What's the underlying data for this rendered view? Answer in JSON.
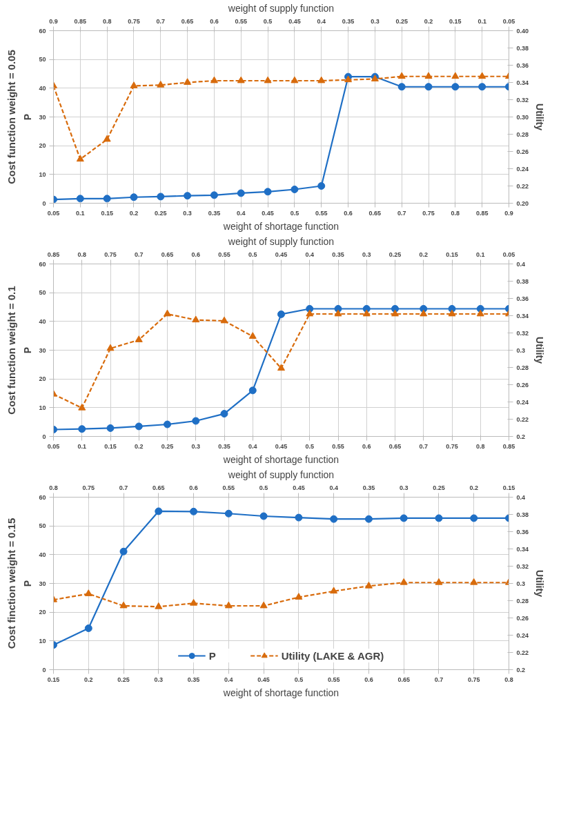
{
  "chart_data": [
    {
      "type": "line",
      "title": "Cost function weight = 0.05",
      "xlabel": "weight of shortage function",
      "x2label": "weight of supply function",
      "ylabel": "P",
      "y2label": "Utility",
      "x": [
        0.05,
        0.1,
        0.15,
        0.2,
        0.25,
        0.3,
        0.35,
        0.4,
        0.45,
        0.5,
        0.55,
        0.6,
        0.65,
        0.7,
        0.75,
        0.8,
        0.85,
        0.9
      ],
      "xlim": [
        0.05,
        0.9
      ],
      "xticks": [
        0.05,
        0.1,
        0.15,
        0.2,
        0.25,
        0.3,
        0.35,
        0.4,
        0.45,
        0.5,
        0.55,
        0.6,
        0.65,
        0.7,
        0.75,
        0.8,
        0.85,
        0.9
      ],
      "x2lim": [
        0.9,
        0.05
      ],
      "x2ticks": [
        0.9,
        0.85,
        0.8,
        0.75,
        0.7,
        0.65,
        0.6,
        0.55,
        0.5,
        0.45,
        0.4,
        0.35,
        0.3,
        0.25,
        0.2,
        0.15,
        0.1,
        0.05
      ],
      "ylim": [
        0,
        60
      ],
      "yticks": [
        0,
        10,
        20,
        30,
        40,
        50,
        60
      ],
      "y2lim": [
        0.2,
        0.4
      ],
      "y2ticks": [
        {
          "value": 0.2,
          "label": "0.20"
        },
        {
          "value": 0.22,
          "label": "0.22"
        },
        {
          "value": 0.24,
          "label": "0.24"
        },
        {
          "value": 0.26,
          "label": "0.26"
        },
        {
          "value": 0.28,
          "label": "0.28"
        },
        {
          "value": 0.3,
          "label": "0.30"
        },
        {
          "value": 0.32,
          "label": "0.32"
        },
        {
          "value": 0.34,
          "label": "0.34"
        },
        {
          "value": 0.36,
          "label": "0.36"
        },
        {
          "value": 0.38,
          "label": "0.38"
        },
        {
          "value": 0.4,
          "label": "0.40"
        }
      ],
      "grid": true,
      "series": [
        {
          "color": "#1f6fc5",
          "marker": "circle",
          "line_style": "solid",
          "values": [
            1.3,
            1.6,
            1.6,
            2.1,
            2.3,
            2.6,
            2.8,
            3.5,
            4.0,
            4.8,
            6.0,
            44,
            44,
            40.5,
            40.5,
            40.5,
            40.5,
            40.5
          ]
        },
        {
          "color": "#d86b0c",
          "marker": "triangle",
          "line_style": "dashed",
          "axis": "y2",
          "values": [
            0.336,
            0.251,
            0.274,
            0.336,
            0.337,
            0.34,
            0.342,
            0.342,
            0.342,
            0.342,
            0.342,
            0.343,
            0.344,
            0.347,
            0.347,
            0.347,
            0.347,
            0.347
          ]
        }
      ]
    },
    {
      "type": "line",
      "title": "Cost function weight = 0.1",
      "xlabel": "weight of shortage function",
      "x2label": "weight of supply function",
      "ylabel": "P",
      "y2label": "Utility",
      "x": [
        0.05,
        0.1,
        0.15,
        0.2,
        0.25,
        0.3,
        0.35,
        0.4,
        0.45,
        0.5,
        0.55,
        0.6,
        0.65,
        0.7,
        0.75,
        0.8,
        0.85
      ],
      "xlim": [
        0.05,
        0.85
      ],
      "xticks": [
        0.05,
        0.1,
        0.15,
        0.2,
        0.25,
        0.3,
        0.35,
        0.4,
        0.45,
        0.5,
        0.55,
        0.6,
        0.65,
        0.7,
        0.75,
        0.8,
        0.85
      ],
      "x2lim": [
        0.85,
        0.05
      ],
      "x2ticks": [
        0.85,
        0.8,
        0.75,
        0.7,
        0.65,
        0.6,
        0.55,
        0.5,
        0.45,
        0.4,
        0.35,
        0.3,
        0.25,
        0.2,
        0.15,
        0.1,
        0.05
      ],
      "ylim": [
        0,
        60
      ],
      "yticks": [
        0,
        10,
        20,
        30,
        40,
        50,
        60
      ],
      "y2lim": [
        0.2,
        0.4
      ],
      "y2ticks": [
        0.2,
        0.22,
        0.24,
        0.26,
        0.28,
        0.3,
        0.32,
        0.34,
        0.36,
        0.38,
        0.4
      ],
      "grid": true,
      "series": [
        {
          "color": "#1f6fc5",
          "marker": "circle",
          "line_style": "solid",
          "values": [
            2.4,
            2.6,
            2.9,
            3.5,
            4.2,
            5.4,
            7.9,
            16,
            42.5,
            44.4,
            44.4,
            44.4,
            44.4,
            44.4,
            44.4,
            44.4,
            44.4
          ]
        },
        {
          "color": "#d86b0c",
          "marker": "triangle",
          "line_style": "dashed",
          "axis": "y2",
          "values": [
            0.249,
            0.233,
            0.302,
            0.312,
            0.342,
            0.335,
            0.334,
            0.316,
            0.279,
            0.342,
            0.342,
            0.342,
            0.342,
            0.342,
            0.342,
            0.342,
            0.342
          ]
        }
      ]
    },
    {
      "type": "line",
      "title": "Cost finction weight = 0.15",
      "xlabel": "weight of shortage function",
      "x2label": "weight of supply function",
      "ylabel": "P",
      "y2label": "Utility",
      "x": [
        0.15,
        0.2,
        0.25,
        0.3,
        0.35,
        0.4,
        0.45,
        0.5,
        0.55,
        0.6,
        0.65,
        0.7,
        0.75,
        0.8
      ],
      "xlim": [
        0.15,
        0.8
      ],
      "xticks": [
        0.15,
        0.2,
        0.25,
        0.3,
        0.35,
        0.4,
        0.45,
        0.5,
        0.55,
        0.6,
        0.65,
        0.7,
        0.75,
        0.8
      ],
      "x2lim": [
        0.8,
        0.15
      ],
      "x2ticks": [
        0.8,
        0.75,
        0.7,
        0.65,
        0.6,
        0.55,
        0.5,
        0.45,
        0.4,
        0.35,
        0.3,
        0.25,
        0.2,
        0.15
      ],
      "ylim": [
        0,
        60
      ],
      "yticks": [
        0,
        10,
        20,
        30,
        40,
        50,
        60
      ],
      "y2lim": [
        0.2,
        0.4
      ],
      "y2ticks": [
        0.2,
        0.22,
        0.24,
        0.26,
        0.28,
        0.3,
        0.32,
        0.34,
        0.36,
        0.38,
        0.4
      ],
      "grid": true,
      "legend": "bottom",
      "series": [
        {
          "name": "P",
          "color": "#1f6fc5",
          "marker": "circle",
          "line_style": "solid",
          "values": [
            8.6,
            14.4,
            41.1,
            55.1,
            55,
            54.3,
            53.4,
            52.9,
            52.4,
            52.4,
            52.7,
            52.7,
            52.7,
            52.7
          ]
        },
        {
          "name": "Utility (LAKE & AGR)",
          "color": "#d86b0c",
          "marker": "triangle",
          "line_style": "dashed",
          "axis": "y2",
          "values": [
            0.281,
            0.288,
            0.274,
            0.273,
            0.277,
            0.274,
            0.274,
            0.284,
            0.291,
            0.297,
            0.301,
            0.301,
            0.301,
            0.301
          ]
        }
      ]
    }
  ]
}
